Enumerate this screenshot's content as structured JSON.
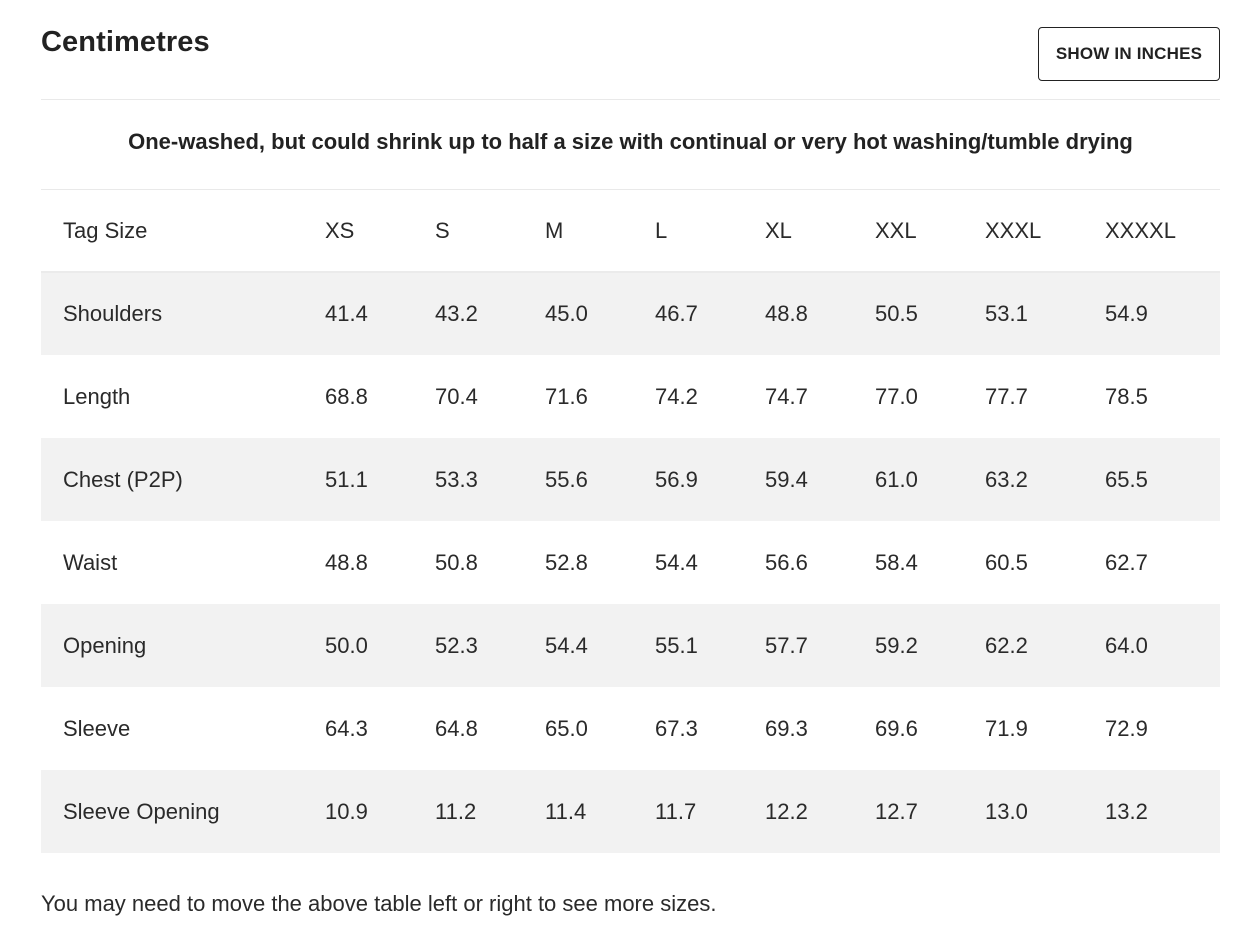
{
  "unit_title": "Centimetres",
  "toggle_button": {
    "label": "SHOW IN INCHES"
  },
  "care_note": "One-washed, but could shrink up to half a size with continual or very hot washing/tumble drying",
  "table": {
    "header": [
      "Tag Size",
      "XS",
      "S",
      "M",
      "L",
      "XL",
      "XXL",
      "XXXL",
      "XXXXL"
    ],
    "rows": [
      {
        "label": "Shoulders",
        "values": [
          "41.4",
          "43.2",
          "45.0",
          "46.7",
          "48.8",
          "50.5",
          "53.1",
          "54.9"
        ]
      },
      {
        "label": "Length",
        "values": [
          "68.8",
          "70.4",
          "71.6",
          "74.2",
          "74.7",
          "77.0",
          "77.7",
          "78.5"
        ]
      },
      {
        "label": "Chest (P2P)",
        "values": [
          "51.1",
          "53.3",
          "55.6",
          "56.9",
          "59.4",
          "61.0",
          "63.2",
          "65.5"
        ]
      },
      {
        "label": "Waist",
        "values": [
          "48.8",
          "50.8",
          "52.8",
          "54.4",
          "56.6",
          "58.4",
          "60.5",
          "62.7"
        ]
      },
      {
        "label": "Opening",
        "values": [
          "50.0",
          "52.3",
          "54.4",
          "55.1",
          "57.7",
          "59.2",
          "62.2",
          "64.0"
        ]
      },
      {
        "label": "Sleeve",
        "values": [
          "64.3",
          "64.8",
          "65.0",
          "67.3",
          "69.3",
          "69.6",
          "71.9",
          "72.9"
        ]
      },
      {
        "label": "Sleeve Opening",
        "values": [
          "10.9",
          "11.2",
          "11.4",
          "11.7",
          "12.2",
          "12.7",
          "13.0",
          "13.2"
        ]
      }
    ]
  },
  "footnote": "You may need to move the above table left or right to see more sizes."
}
